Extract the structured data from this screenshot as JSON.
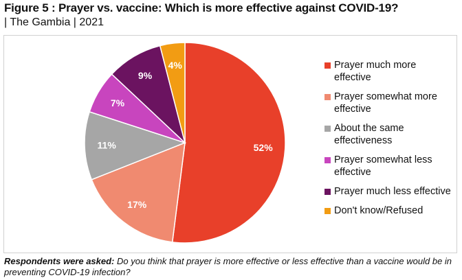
{
  "chart_data": {
    "type": "pie",
    "title": "Figure 5 : Prayer vs. vaccine: Which is more effective against COVID-19?",
    "subtitle": "| The Gambia | 2021",
    "slices": [
      {
        "label": "Prayer much more effective",
        "value": 52,
        "display": "52%",
        "color": "#E8402A"
      },
      {
        "label": "Prayer somewhat more effective",
        "value": 17,
        "display": "17%",
        "color": "#F08A70"
      },
      {
        "label": "About the same effectiveness",
        "value": 11,
        "display": "11%",
        "color": "#A6A6A6"
      },
      {
        "label": "Prayer somewhat less effective",
        "value": 7,
        "display": "7%",
        "color": "#C845BE"
      },
      {
        "label": "Prayer much less effective",
        "value": 9,
        "display": "9%",
        "color": "#6B1360"
      },
      {
        "label": "Don't know/Refused",
        "value": 4,
        "display": "4%",
        "color": "#F29C13"
      }
    ],
    "legend_position": "right"
  },
  "footnote": {
    "lead": "Respondents were asked:",
    "text": " Do you think that prayer is more effective or less effective than a vaccine would be in preventing COVID-19 infection?"
  }
}
